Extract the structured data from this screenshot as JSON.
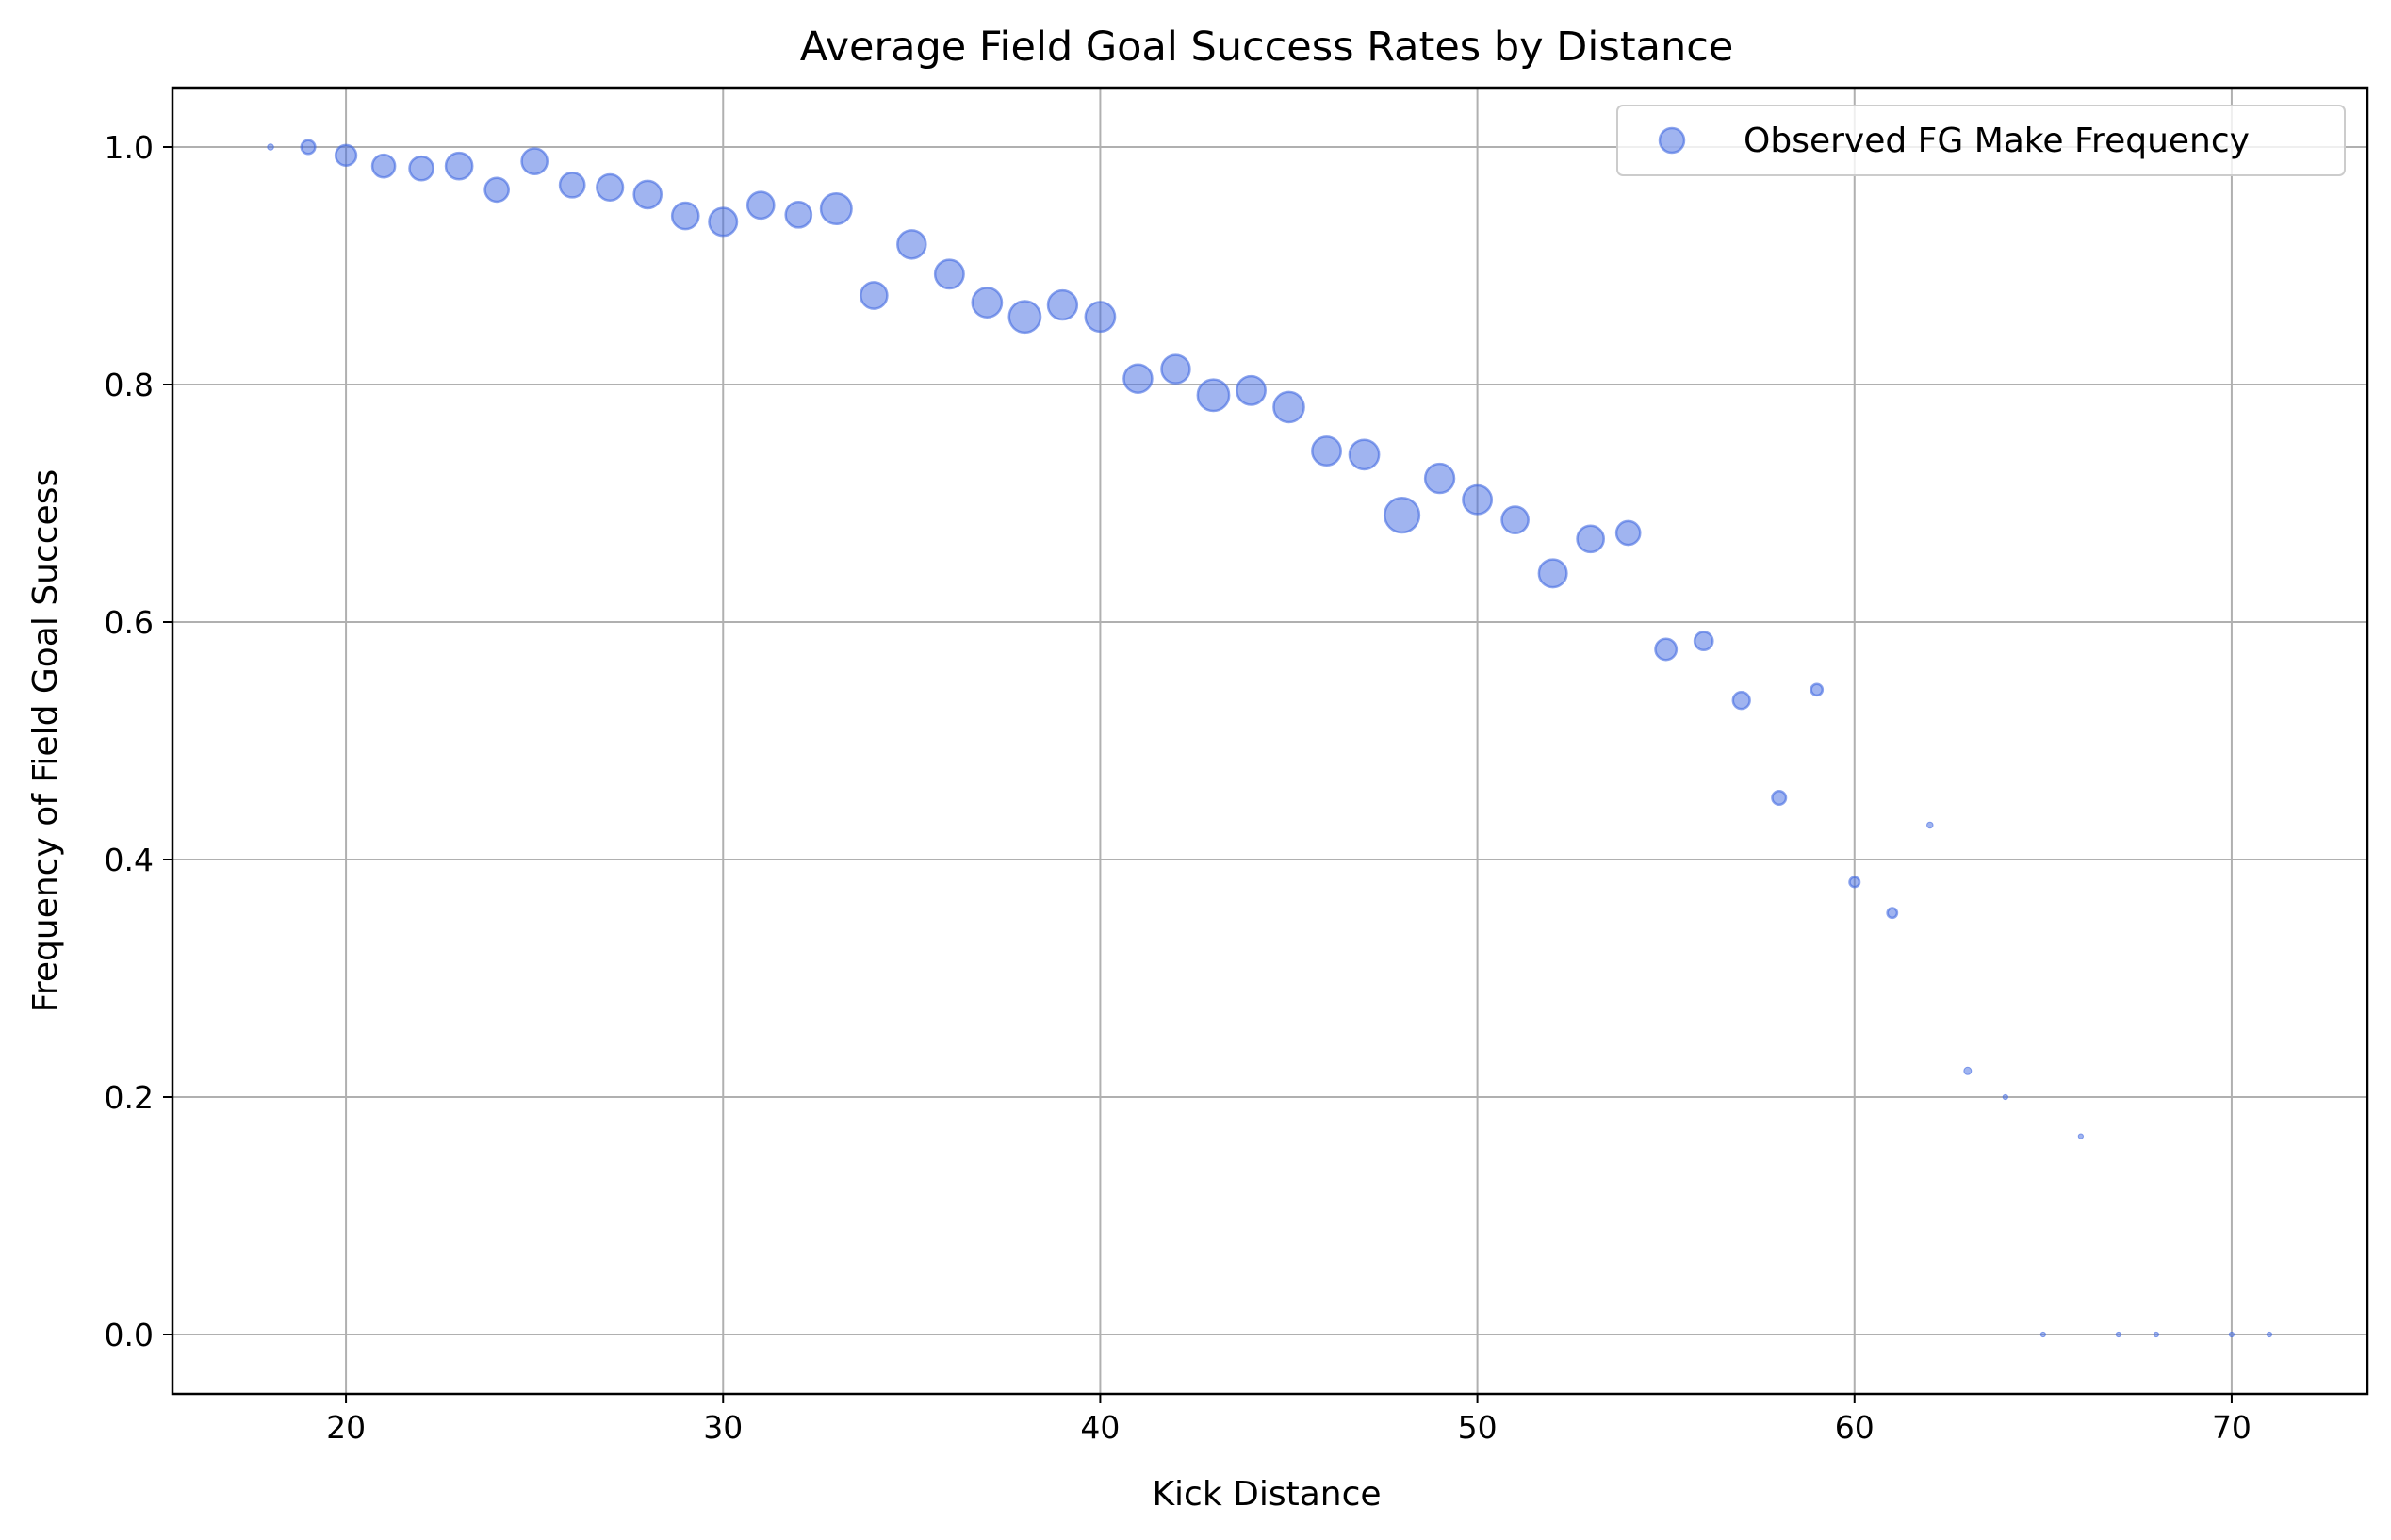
{
  "chart_data": {
    "type": "scatter",
    "title": "Average Field Goal Success Rates by Distance",
    "xlabel": "Kick Distance",
    "ylabel": "Frequency of Field Goal Success",
    "xlim": [
      15.4,
      73.6
    ],
    "ylim": [
      -0.05,
      1.05
    ],
    "xticks": [
      20,
      30,
      40,
      50,
      60,
      70
    ],
    "yticks": [
      0.0,
      0.2,
      0.4,
      0.6,
      0.8,
      1.0
    ],
    "xtick_labels": [
      "20",
      "30",
      "40",
      "50",
      "60",
      "70"
    ],
    "ytick_labels": [
      "0.0",
      "0.2",
      "0.4",
      "0.6",
      "0.8",
      "1.0"
    ],
    "grid": true,
    "legend_position": "top-right",
    "marker_color": "#4169e1",
    "series": [
      {
        "name": "Observed FG Make Frequency",
        "x": [
          18,
          19,
          20,
          21,
          22,
          23,
          24,
          25,
          26,
          27,
          28,
          29,
          30,
          31,
          32,
          33,
          34,
          35,
          36,
          37,
          38,
          39,
          40,
          41,
          42,
          43,
          44,
          45,
          46,
          47,
          48,
          49,
          50,
          51,
          52,
          53,
          54,
          55,
          56,
          57,
          58,
          59,
          60,
          61,
          62,
          63,
          64,
          65,
          66,
          67,
          68,
          70,
          71
        ],
        "y": [
          1.0,
          1.0,
          0.993,
          0.984,
          0.982,
          0.984,
          0.964,
          0.988,
          0.968,
          0.966,
          0.96,
          0.942,
          0.937,
          0.951,
          0.943,
          0.948,
          0.875,
          0.918,
          0.893,
          0.869,
          0.857,
          0.867,
          0.857,
          0.805,
          0.813,
          0.791,
          0.795,
          0.781,
          0.744,
          0.741,
          0.69,
          0.721,
          0.703,
          0.686,
          0.641,
          0.67,
          0.675,
          0.577,
          0.584,
          0.534,
          0.452,
          0.543,
          0.381,
          0.355,
          0.429,
          0.222,
          0.2,
          0.0,
          0.167,
          0.0,
          0.0,
          0.0,
          0.0
        ],
        "attempts": [
          8,
          40,
          90,
          110,
          120,
          150,
          120,
          140,
          130,
          145,
          160,
          150,
          165,
          150,
          140,
          200,
          150,
          170,
          175,
          185,
          210,
          180,
          185,
          170,
          170,
          210,
          175,
          195,
          175,
          185,
          255,
          180,
          175,
          150,
          165,
          150,
          120,
          95,
          70,
          60,
          40,
          28,
          21,
          20,
          8,
          12,
          5,
          3,
          3,
          2,
          3,
          1,
          1
        ]
      }
    ]
  }
}
